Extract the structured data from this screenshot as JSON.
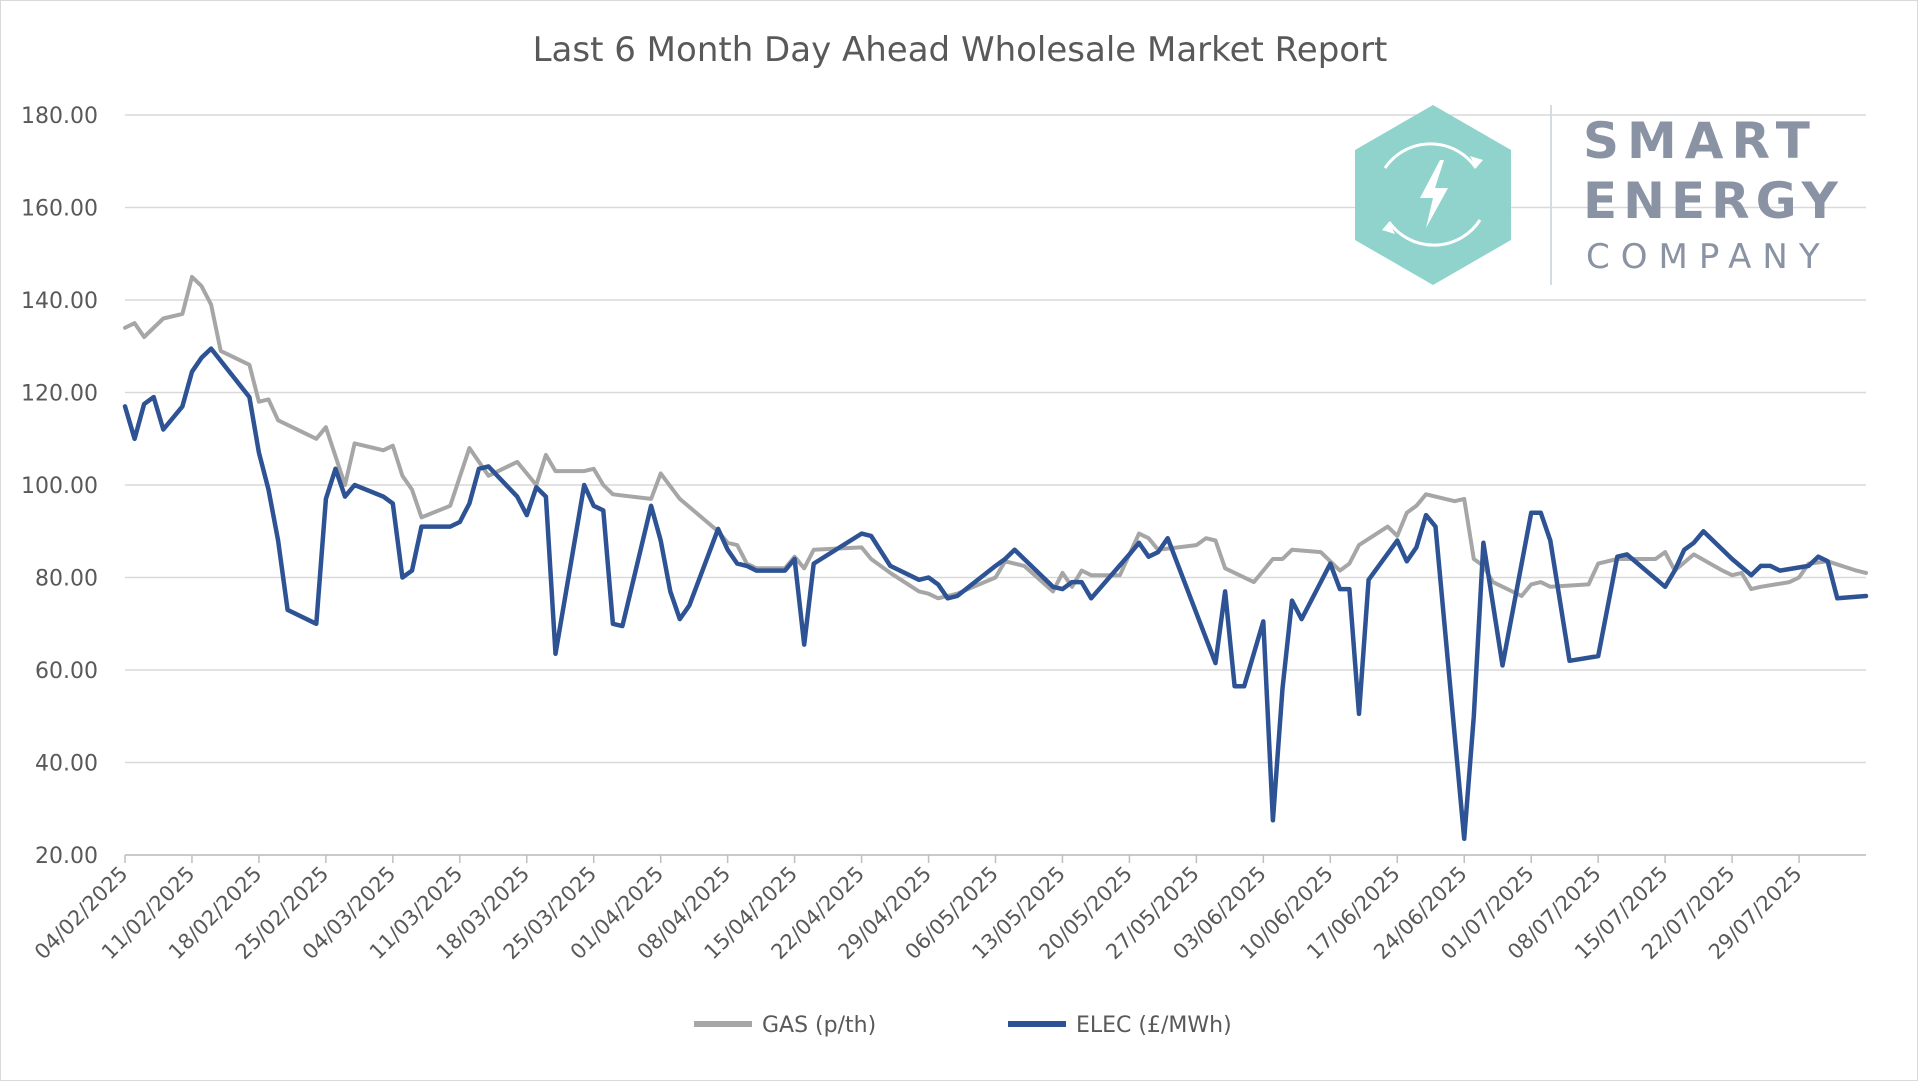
{
  "chart_data": {
    "type": "line",
    "title": "Last 6 Month Day Ahead Wholesale Market Report",
    "xlabel": "",
    "ylabel": "",
    "ylim": [
      20,
      180
    ],
    "y_ticks": [
      "20.00",
      "40.00",
      "60.00",
      "80.00",
      "100.00",
      "120.00",
      "140.00",
      "160.00",
      "180.00"
    ],
    "x_tick_labels": [
      "04/02/2025",
      "11/02/2025",
      "18/02/2025",
      "25/02/2025",
      "04/03/2025",
      "11/03/2025",
      "18/03/2025",
      "25/03/2025",
      "01/04/2025",
      "08/04/2025",
      "15/04/2025",
      "22/04/2025",
      "29/04/2025",
      "06/05/2025",
      "13/05/2025",
      "20/05/2025",
      "27/05/2025",
      "03/06/2025",
      "10/06/2025",
      "17/06/2025",
      "24/06/2025",
      "01/07/2025",
      "08/07/2025",
      "15/07/2025",
      "22/07/2025",
      "29/07/2025"
    ],
    "x_start": "04/02/2025",
    "x_end": "05/08/2025",
    "grid": "horizontal",
    "legend": "bottom",
    "series": [
      {
        "name": "GAS (p/th)",
        "color": "#a6a6a6",
        "points": [
          [
            "04/02/2025",
            134
          ],
          [
            "05/02/2025",
            135
          ],
          [
            "06/02/2025",
            132
          ],
          [
            "08/02/2025",
            136
          ],
          [
            "10/02/2025",
            137
          ],
          [
            "11/02/2025",
            145
          ],
          [
            "12/02/2025",
            143
          ],
          [
            "13/02/2025",
            139
          ],
          [
            "14/02/2025",
            129
          ],
          [
            "17/02/2025",
            126
          ],
          [
            "18/02/2025",
            118
          ],
          [
            "19/02/2025",
            118.5
          ],
          [
            "20/02/2025",
            114
          ],
          [
            "24/02/2025",
            110
          ],
          [
            "25/02/2025",
            112.5
          ],
          [
            "27/02/2025",
            100
          ],
          [
            "28/02/2025",
            109
          ],
          [
            "03/03/2025",
            107.5
          ],
          [
            "04/03/2025",
            108.5
          ],
          [
            "05/03/2025",
            102
          ],
          [
            "06/03/2025",
            99
          ],
          [
            "07/03/2025",
            93
          ],
          [
            "10/03/2025",
            95.5
          ],
          [
            "12/03/2025",
            108
          ],
          [
            "14/03/2025",
            102
          ],
          [
            "17/03/2025",
            105
          ],
          [
            "19/03/2025",
            100
          ],
          [
            "20/03/2025",
            106.5
          ],
          [
            "21/03/2025",
            103
          ],
          [
            "24/03/2025",
            103
          ],
          [
            "25/03/2025",
            103.5
          ],
          [
            "26/03/2025",
            100
          ],
          [
            "27/03/2025",
            98
          ],
          [
            "31/03/2025",
            97
          ],
          [
            "01/04/2025",
            102.5
          ],
          [
            "03/04/2025",
            97
          ],
          [
            "07/04/2025",
            90
          ],
          [
            "08/04/2025",
            87.5
          ],
          [
            "09/04/2025",
            87
          ],
          [
            "10/04/2025",
            83
          ],
          [
            "11/04/2025",
            82
          ],
          [
            "14/04/2025",
            82
          ],
          [
            "15/04/2025",
            84.5
          ],
          [
            "16/04/2025",
            82
          ],
          [
            "17/04/2025",
            86
          ],
          [
            "22/04/2025",
            86.5
          ],
          [
            "23/04/2025",
            84
          ],
          [
            "25/04/2025",
            81
          ],
          [
            "28/04/2025",
            77
          ],
          [
            "29/04/2025",
            76.5
          ],
          [
            "30/04/2025",
            75.5
          ],
          [
            "02/05/2025",
            76.5
          ],
          [
            "06/05/2025",
            80
          ],
          [
            "07/05/2025",
            83.5
          ],
          [
            "09/05/2025",
            82.5
          ],
          [
            "12/05/2025",
            77
          ],
          [
            "13/05/2025",
            81
          ],
          [
            "14/05/2025",
            78
          ],
          [
            "15/05/2025",
            81.5
          ],
          [
            "16/05/2025",
            80.5
          ],
          [
            "19/05/2025",
            80.5
          ],
          [
            "21/05/2025",
            89.5
          ],
          [
            "22/05/2025",
            88.5
          ],
          [
            "23/05/2025",
            86
          ],
          [
            "27/05/2025",
            87
          ],
          [
            "28/05/2025",
            88.5
          ],
          [
            "29/05/2025",
            88
          ],
          [
            "30/05/2025",
            82
          ],
          [
            "02/06/2025",
            79
          ],
          [
            "04/06/2025",
            84
          ],
          [
            "05/06/2025",
            84
          ],
          [
            "06/06/2025",
            86
          ],
          [
            "09/06/2025",
            85.5
          ],
          [
            "11/06/2025",
            81.5
          ],
          [
            "12/06/2025",
            83
          ],
          [
            "13/06/2025",
            87
          ],
          [
            "16/06/2025",
            91
          ],
          [
            "17/06/2025",
            89
          ],
          [
            "18/06/2025",
            94
          ],
          [
            "19/06/2025",
            95.5
          ],
          [
            "20/06/2025",
            98
          ],
          [
            "23/06/2025",
            96.5
          ],
          [
            "24/06/2025",
            97
          ],
          [
            "25/06/2025",
            84
          ],
          [
            "26/06/2025",
            82.5
          ],
          [
            "27/06/2025",
            79
          ],
          [
            "30/06/2025",
            76
          ],
          [
            "01/07/2025",
            78.5
          ],
          [
            "02/07/2025",
            79
          ],
          [
            "03/07/2025",
            78
          ],
          [
            "07/07/2025",
            78.5
          ],
          [
            "08/07/2025",
            83
          ],
          [
            "10/07/2025",
            84
          ],
          [
            "14/07/2025",
            84
          ],
          [
            "15/07/2025",
            85.5
          ],
          [
            "16/07/2025",
            81.5
          ],
          [
            "18/07/2025",
            85
          ],
          [
            "21/07/2025",
            81.5
          ],
          [
            "22/07/2025",
            80.5
          ],
          [
            "23/07/2025",
            81
          ],
          [
            "24/07/2025",
            77.5
          ],
          [
            "25/07/2025",
            78
          ],
          [
            "28/07/2025",
            79
          ],
          [
            "29/07/2025",
            80
          ],
          [
            "30/07/2025",
            83
          ],
          [
            "01/08/2025",
            83.5
          ],
          [
            "04/08/2025",
            81.5
          ],
          [
            "05/08/2025",
            81
          ]
        ]
      },
      {
        "name": "ELEC (£/MWh)",
        "color": "#2e5395",
        "points": [
          [
            "04/02/2025",
            117
          ],
          [
            "05/02/2025",
            110
          ],
          [
            "06/02/2025",
            117.5
          ],
          [
            "07/02/2025",
            119
          ],
          [
            "08/02/2025",
            112
          ],
          [
            "10/02/2025",
            117
          ],
          [
            "11/02/2025",
            124.5
          ],
          [
            "12/02/2025",
            127.5
          ],
          [
            "13/02/2025",
            129.5
          ],
          [
            "17/02/2025",
            119
          ],
          [
            "18/02/2025",
            107
          ],
          [
            "19/02/2025",
            99
          ],
          [
            "20/02/2025",
            88
          ],
          [
            "21/02/2025",
            73
          ],
          [
            "24/02/2025",
            70
          ],
          [
            "25/02/2025",
            97
          ],
          [
            "26/02/2025",
            103.5
          ],
          [
            "27/02/2025",
            97.5
          ],
          [
            "28/02/2025",
            100
          ],
          [
            "03/03/2025",
            97.5
          ],
          [
            "04/03/2025",
            96
          ],
          [
            "05/03/2025",
            80
          ],
          [
            "06/03/2025",
            81.5
          ],
          [
            "07/03/2025",
            91
          ],
          [
            "10/03/2025",
            91
          ],
          [
            "11/03/2025",
            92
          ],
          [
            "12/03/2025",
            96
          ],
          [
            "13/03/2025",
            103.5
          ],
          [
            "14/03/2025",
            104
          ],
          [
            "17/03/2025",
            97.5
          ],
          [
            "18/03/2025",
            93.5
          ],
          [
            "19/03/2025",
            99.5
          ],
          [
            "20/03/2025",
            97.5
          ],
          [
            "21/03/2025",
            63.5
          ],
          [
            "24/03/2025",
            100
          ],
          [
            "25/03/2025",
            95.5
          ],
          [
            "26/03/2025",
            94.5
          ],
          [
            "27/03/2025",
            70
          ],
          [
            "28/03/2025",
            69.5
          ],
          [
            "31/03/2025",
            95.5
          ],
          [
            "01/04/2025",
            88
          ],
          [
            "02/04/2025",
            77
          ],
          [
            "03/04/2025",
            71
          ],
          [
            "04/04/2025",
            74
          ],
          [
            "07/04/2025",
            90.5
          ],
          [
            "08/04/2025",
            86
          ],
          [
            "09/04/2025",
            83
          ],
          [
            "10/04/2025",
            82.5
          ],
          [
            "11/04/2025",
            81.5
          ],
          [
            "14/04/2025",
            81.5
          ],
          [
            "15/04/2025",
            84
          ],
          [
            "16/04/2025",
            65.5
          ],
          [
            "17/04/2025",
            83
          ],
          [
            "22/04/2025",
            89.5
          ],
          [
            "23/04/2025",
            89
          ],
          [
            "25/04/2025",
            82.5
          ],
          [
            "28/04/2025",
            79.5
          ],
          [
            "29/04/2025",
            80
          ],
          [
            "30/04/2025",
            78.5
          ],
          [
            "01/05/2025",
            75.5
          ],
          [
            "02/05/2025",
            76
          ],
          [
            "06/05/2025",
            82.5
          ],
          [
            "07/05/2025",
            84
          ],
          [
            "08/05/2025",
            86
          ],
          [
            "12/05/2025",
            78
          ],
          [
            "13/05/2025",
            77.5
          ],
          [
            "14/05/2025",
            79
          ],
          [
            "15/05/2025",
            79
          ],
          [
            "16/05/2025",
            75.5
          ],
          [
            "20/05/2025",
            85
          ],
          [
            "21/05/2025",
            87.5
          ],
          [
            "22/05/2025",
            84.5
          ],
          [
            "23/05/2025",
            85.5
          ],
          [
            "24/05/2025",
            88.5
          ],
          [
            "29/05/2025",
            61.5
          ],
          [
            "30/05/2025",
            77
          ],
          [
            "31/05/2025",
            56.5
          ],
          [
            "01/06/2025",
            56.5
          ],
          [
            "03/06/2025",
            70.5
          ],
          [
            "04/06/2025",
            27.5
          ],
          [
            "05/06/2025",
            56
          ],
          [
            "06/06/2025",
            75
          ],
          [
            "07/06/2025",
            71
          ],
          [
            "10/06/2025",
            83
          ],
          [
            "11/06/2025",
            77.5
          ],
          [
            "12/06/2025",
            77.5
          ],
          [
            "13/06/2025",
            50.5
          ],
          [
            "14/06/2025",
            79.5
          ],
          [
            "17/06/2025",
            88
          ],
          [
            "18/06/2025",
            83.5
          ],
          [
            "19/06/2025",
            86.5
          ],
          [
            "20/06/2025",
            93.5
          ],
          [
            "21/06/2025",
            91
          ],
          [
            "24/06/2025",
            23.5
          ],
          [
            "25/06/2025",
            50
          ],
          [
            "26/06/2025",
            87.5
          ],
          [
            "28/06/2025",
            61
          ],
          [
            "01/07/2025",
            94
          ],
          [
            "02/07/2025",
            94
          ],
          [
            "03/07/2025",
            88
          ],
          [
            "05/07/2025",
            62
          ],
          [
            "08/07/2025",
            63
          ],
          [
            "10/07/2025",
            84.5
          ],
          [
            "11/07/2025",
            85
          ],
          [
            "15/07/2025",
            78
          ],
          [
            "16/07/2025",
            81.5
          ],
          [
            "17/07/2025",
            86
          ],
          [
            "18/07/2025",
            87.5
          ],
          [
            "19/07/2025",
            90
          ],
          [
            "22/07/2025",
            84
          ],
          [
            "24/07/2025",
            80.5
          ],
          [
            "25/07/2025",
            82.5
          ],
          [
            "26/07/2025",
            82.5
          ],
          [
            "27/07/2025",
            81.5
          ],
          [
            "30/07/2025",
            82.5
          ],
          [
            "31/07/2025",
            84.5
          ],
          [
            "01/08/2025",
            83.5
          ],
          [
            "02/08/2025",
            75.5
          ],
          [
            "05/08/2025",
            76
          ]
        ]
      }
    ]
  },
  "logo": {
    "line1": "SMART",
    "line2": "ENERGY",
    "line3": "COMPANY",
    "hex_color": "#8fd3cc",
    "text_color": "#8a93a3",
    "icon": "lightning-bolt-icon"
  }
}
